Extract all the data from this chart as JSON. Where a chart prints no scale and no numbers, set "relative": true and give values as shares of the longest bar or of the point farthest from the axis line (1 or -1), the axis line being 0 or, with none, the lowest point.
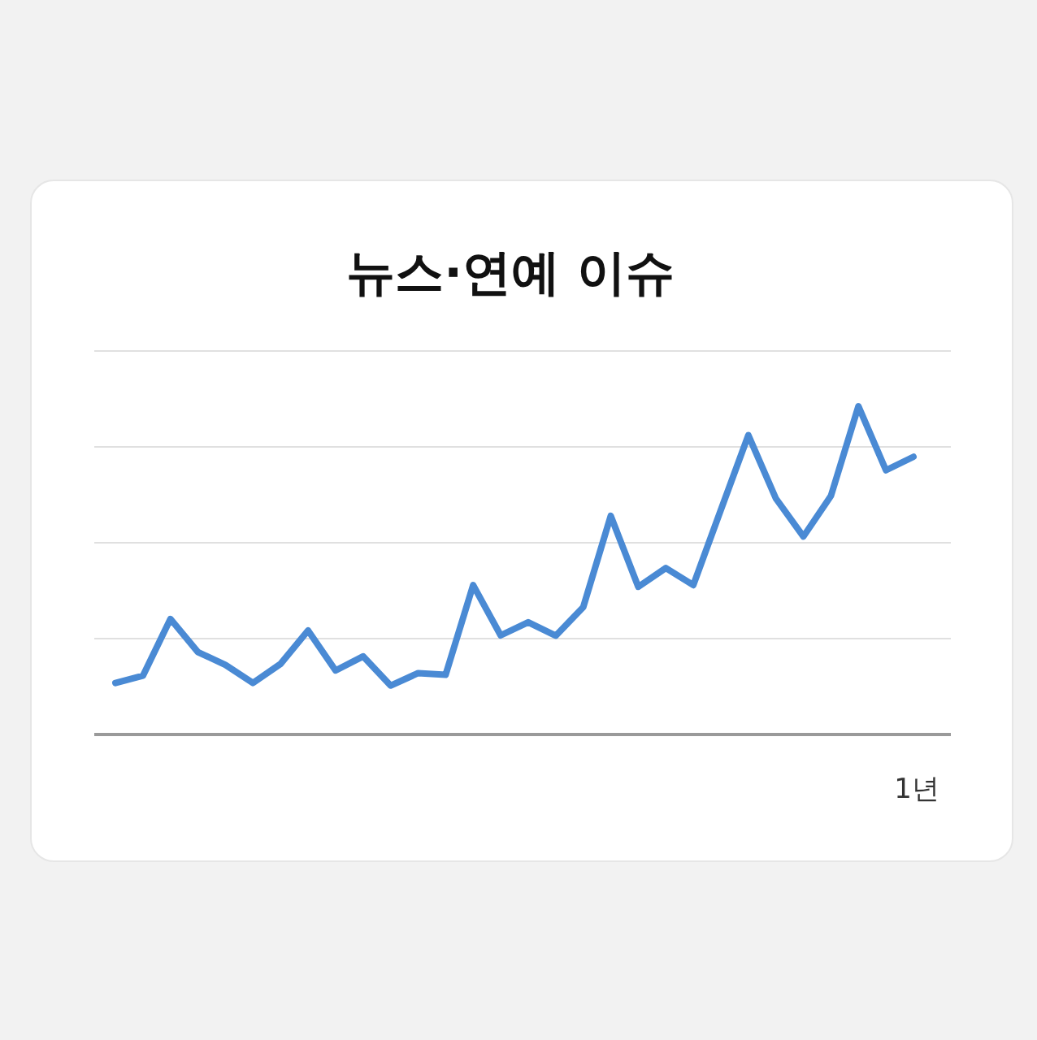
{
  "chart_data": {
    "type": "line",
    "title": "뉴스·연예 이슈",
    "xlabel": "1년",
    "relative": true,
    "grid": "y",
    "marker": "none",
    "line_style": "solid",
    "categories": [
      null,
      null,
      null,
      null,
      null,
      null,
      null,
      null,
      null,
      null,
      null,
      null,
      null,
      null,
      null,
      null,
      null,
      null,
      null,
      null,
      null,
      null,
      null,
      null,
      null,
      null,
      null,
      null,
      null,
      null
    ],
    "series": [
      {
        "color": "#4a8ad4",
        "values": [
          0.157,
          0.179,
          0.352,
          0.251,
          0.212,
          0.157,
          0.215,
          0.317,
          0.195,
          0.238,
          0.149,
          0.187,
          0.182,
          0.455,
          0.302,
          0.342,
          0.301,
          0.388,
          0.666,
          0.45,
          0.507,
          0.455,
          0.684,
          0.912,
          0.719,
          0.603,
          0.727,
          1,
          0.805,
          0.846
        ]
      }
    ]
  }
}
